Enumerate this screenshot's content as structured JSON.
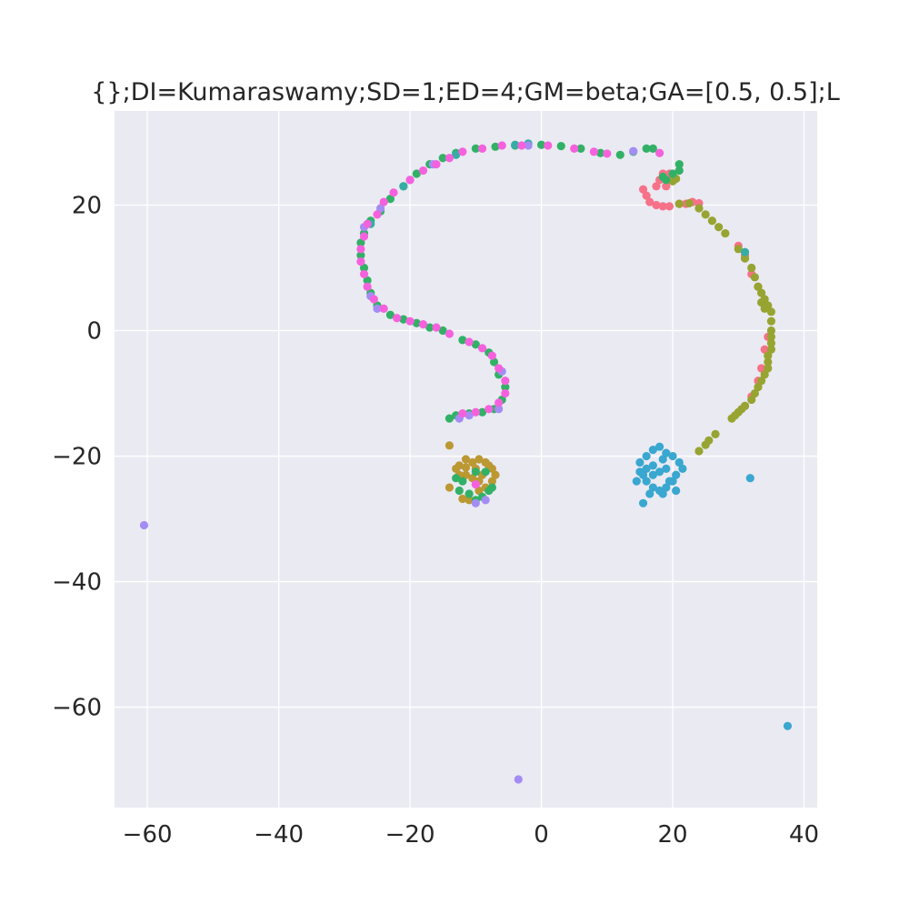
{
  "chart_data": {
    "type": "scatter",
    "title": "{};DI=Kumaraswamy;SD=1;ED=4;GM=beta;GA=[0.5, 0.5];L",
    "xlabel": "",
    "ylabel": "",
    "xlim": [
      -65,
      42
    ],
    "ylim": [
      -76,
      35
    ],
    "xticks": [
      -60,
      -40,
      -20,
      0,
      20,
      40
    ],
    "yticks": [
      20,
      0,
      -20,
      -40,
      -60
    ],
    "xtick_labels": [
      "−60",
      "−40",
      "−20",
      "0",
      "20",
      "40"
    ],
    "ytick_labels": [
      "20",
      "0",
      "−20",
      "−40",
      "−60"
    ],
    "grid": true,
    "legend": "none",
    "colors": {
      "background": "#eaeaf2",
      "grid": "#ffffff",
      "text": "#262626"
    },
    "series": [
      {
        "color": "#f77189",
        "points": [
          [
            15.5,
            22.5
          ],
          [
            16,
            21.5
          ],
          [
            16.5,
            20.5
          ],
          [
            17.5,
            20
          ],
          [
            18.5,
            19.8
          ],
          [
            19.5,
            19.8
          ],
          [
            21,
            20.2
          ],
          [
            22,
            20.2
          ],
          [
            23,
            20.5
          ],
          [
            24,
            20.3
          ],
          [
            17.5,
            23
          ],
          [
            18,
            24
          ],
          [
            18.5,
            25
          ],
          [
            19.5,
            25
          ],
          [
            20,
            24.2
          ],
          [
            19,
            23
          ],
          [
            30,
            13.5
          ],
          [
            31,
            12
          ],
          [
            32,
            9
          ],
          [
            33,
            7
          ],
          [
            34,
            4
          ],
          [
            34.5,
            -1
          ],
          [
            34,
            -3
          ],
          [
            33.5,
            -6
          ],
          [
            33,
            -8
          ],
          [
            32,
            -10.5
          ],
          [
            31,
            -12
          ]
        ]
      },
      {
        "color": "#bb9832",
        "points": [
          [
            -14,
            -18.3
          ],
          [
            -12.5,
            -21.5
          ],
          [
            -11.5,
            -20.5
          ],
          [
            -10.5,
            -21
          ],
          [
            -9.5,
            -20.5
          ],
          [
            -8.5,
            -21
          ],
          [
            -7.5,
            -22
          ],
          [
            -7,
            -23
          ],
          [
            -7.5,
            -24
          ],
          [
            -8.5,
            -25
          ],
          [
            -9.5,
            -24
          ],
          [
            -10.5,
            -23.5
          ],
          [
            -11.5,
            -23
          ],
          [
            -12.5,
            -23
          ],
          [
            -13,
            -22
          ],
          [
            -14,
            -25
          ],
          [
            -12,
            -26.8
          ],
          [
            -11,
            -27
          ],
          [
            -10,
            -22
          ],
          [
            -9,
            -23
          ],
          [
            -8,
            -21.5
          ],
          [
            -11.5,
            -21.8
          ],
          [
            -9.5,
            -25.5
          ]
        ]
      },
      {
        "color": "#97a431",
        "points": [
          [
            21,
            20.2
          ],
          [
            22.5,
            20.3
          ],
          [
            24,
            19.5
          ],
          [
            25,
            18.5
          ],
          [
            26,
            17.5
          ],
          [
            27,
            16.5
          ],
          [
            28,
            15.5
          ],
          [
            30,
            13
          ],
          [
            31,
            11.5
          ],
          [
            32,
            10
          ],
          [
            32.5,
            8.5
          ],
          [
            33,
            7
          ],
          [
            33.5,
            6
          ],
          [
            34,
            5
          ],
          [
            34.5,
            4
          ],
          [
            35,
            3
          ],
          [
            35,
            1.5
          ],
          [
            35,
            0
          ],
          [
            35,
            -1
          ],
          [
            35,
            -2
          ],
          [
            35,
            -3
          ],
          [
            34.5,
            -4
          ],
          [
            34.5,
            -5
          ],
          [
            34.5,
            -6
          ],
          [
            34,
            -7
          ],
          [
            33.5,
            -8
          ],
          [
            33,
            -9
          ],
          [
            32.5,
            -10
          ],
          [
            32,
            -11
          ],
          [
            31,
            -12
          ],
          [
            30.5,
            -12.5
          ],
          [
            30,
            -13
          ],
          [
            29.5,
            -13.5
          ],
          [
            29,
            -14
          ],
          [
            26.5,
            -16.5
          ],
          [
            25.5,
            -17.5
          ],
          [
            25,
            -18.2
          ],
          [
            24,
            -19.2
          ],
          [
            20,
            23.8
          ],
          [
            20.5,
            24.2
          ],
          [
            34,
            3.5
          ],
          [
            33.5,
            4.5
          ]
        ]
      },
      {
        "color": "#32b166",
        "points": [
          [
            -27.5,
            14
          ],
          [
            -27.5,
            12
          ],
          [
            -27,
            10
          ],
          [
            -26.5,
            8
          ],
          [
            -26,
            6
          ],
          [
            -25,
            4
          ],
          [
            -23,
            2.5
          ],
          [
            -21,
            1.8
          ],
          [
            -19,
            1.2
          ],
          [
            -17,
            0.5
          ],
          [
            -15,
            0
          ],
          [
            -12,
            -1.5
          ],
          [
            -10,
            -2.2
          ],
          [
            -8,
            -3.5
          ],
          [
            -7.2,
            -5
          ],
          [
            -6.5,
            -7
          ],
          [
            -5.5,
            -9
          ],
          [
            -6,
            -11
          ],
          [
            -7.2,
            -12.5
          ],
          [
            -9,
            -13
          ],
          [
            -11,
            -13.2
          ],
          [
            -13,
            -13.5
          ],
          [
            -14,
            -14
          ],
          [
            -27,
            15.5
          ],
          [
            -26,
            17.5
          ],
          [
            -24.5,
            19
          ],
          [
            -23,
            21
          ],
          [
            -21,
            23
          ],
          [
            -19,
            25
          ],
          [
            -17,
            26.5
          ],
          [
            -15,
            27.5
          ],
          [
            -13,
            28.3
          ],
          [
            -10,
            29
          ],
          [
            -7,
            29.3
          ],
          [
            -4,
            29.5
          ],
          [
            0,
            29.6
          ],
          [
            3,
            29.4
          ],
          [
            6,
            29
          ],
          [
            9,
            28.3
          ],
          [
            12,
            28
          ],
          [
            14,
            28.5
          ],
          [
            16,
            29
          ],
          [
            17,
            29
          ],
          [
            18.5,
            24.5
          ],
          [
            20,
            25
          ],
          [
            21,
            25.5
          ],
          [
            21,
            26.5
          ],
          [
            19,
            24
          ],
          [
            -12,
            -24
          ],
          [
            -11,
            -26
          ],
          [
            -10,
            -27
          ],
          [
            -9,
            -26.5
          ],
          [
            -8,
            -25.5
          ],
          [
            -12.5,
            -25.5
          ],
          [
            -13,
            -23.5
          ],
          [
            -10,
            -22.5
          ],
          [
            -8.5,
            -22.5
          ],
          [
            -7.5,
            -25
          ]
        ]
      },
      {
        "color": "#36ada4",
        "points": [
          [
            -2,
            29.8
          ],
          [
            -4,
            29.6
          ],
          [
            31,
            12.5
          ],
          [
            -26,
            17
          ],
          [
            -21,
            23
          ],
          [
            -13,
            28
          ]
        ]
      },
      {
        "color": "#39a7d0",
        "points": [
          [
            31.8,
            -23.5
          ],
          [
            37.5,
            -63
          ],
          [
            15,
            -21
          ],
          [
            16,
            -20
          ],
          [
            17,
            -19
          ],
          [
            18,
            -18.5
          ],
          [
            19,
            -19.5
          ],
          [
            20,
            -20
          ],
          [
            21,
            -21
          ],
          [
            21.5,
            -22
          ],
          [
            20.5,
            -23
          ],
          [
            20,
            -24
          ],
          [
            19,
            -25
          ],
          [
            18,
            -25.5
          ],
          [
            17,
            -25
          ],
          [
            16,
            -24
          ],
          [
            15.5,
            -23
          ],
          [
            15,
            -22.5
          ],
          [
            14.5,
            -24
          ],
          [
            16,
            -22
          ],
          [
            17,
            -21.5
          ],
          [
            18,
            -22.5
          ],
          [
            19,
            -22
          ],
          [
            18.5,
            -20.5
          ],
          [
            17,
            -23
          ],
          [
            19.5,
            -24
          ],
          [
            18.5,
            -26
          ],
          [
            15.5,
            -27.5
          ],
          [
            20.5,
            -25.5
          ],
          [
            16.5,
            -26
          ]
        ]
      },
      {
        "color": "#a48cf4",
        "points": [
          [
            -60.5,
            -31
          ],
          [
            -3.5,
            -71.5
          ],
          [
            -10,
            -27.5
          ],
          [
            -8.5,
            -27
          ],
          [
            -11,
            -13.5
          ],
          [
            -12.5,
            -14
          ],
          [
            -6,
            -6.5
          ],
          [
            -25,
            3.5
          ],
          [
            -26,
            5.5
          ],
          [
            -24.5,
            19.5
          ],
          [
            -20,
            24
          ],
          [
            -16.5,
            26.5
          ],
          [
            -2,
            29.5
          ],
          [
            -27,
            16.5
          ],
          [
            14,
            28.6
          ],
          [
            -6.5,
            -12.5
          ]
        ]
      },
      {
        "color": "#f561dd",
        "points": [
          [
            -27.5,
            13
          ],
          [
            -27.5,
            11
          ],
          [
            -27,
            9
          ],
          [
            -26.5,
            7
          ],
          [
            -25.5,
            5
          ],
          [
            -24,
            3.5
          ],
          [
            -22,
            2
          ],
          [
            -20,
            1.5
          ],
          [
            -18,
            1
          ],
          [
            -16,
            0.5
          ],
          [
            -14,
            -0.5
          ],
          [
            -11,
            -1.8
          ],
          [
            -9,
            -2.8
          ],
          [
            -7.5,
            -4
          ],
          [
            -6.5,
            -6
          ],
          [
            -5.5,
            -8
          ],
          [
            -5.5,
            -10
          ],
          [
            -6.5,
            -11.5
          ],
          [
            -8,
            -12.5
          ],
          [
            -10,
            -13
          ],
          [
            -12,
            -13.2
          ],
          [
            -27,
            15
          ],
          [
            -26.5,
            17
          ],
          [
            -25,
            18.5
          ],
          [
            -24,
            20.5
          ],
          [
            -22.5,
            22
          ],
          [
            -20,
            24
          ],
          [
            -18,
            25.5
          ],
          [
            -16,
            26.5
          ],
          [
            -14,
            27.5
          ],
          [
            -12,
            28.5
          ],
          [
            -9,
            29
          ],
          [
            -6,
            29.5
          ],
          [
            -3,
            29.5
          ],
          [
            1,
            29.5
          ],
          [
            5,
            29
          ],
          [
            8,
            28.5
          ],
          [
            10,
            28.2
          ],
          [
            18,
            28.3
          ],
          [
            -10,
            -24.5
          ]
        ]
      }
    ]
  }
}
